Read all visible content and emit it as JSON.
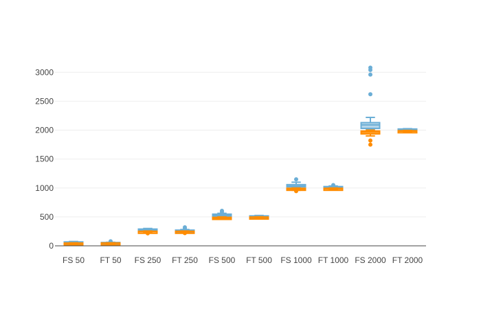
{
  "chart_data": {
    "type": "box",
    "title": "",
    "xlabel": "",
    "ylabel": "",
    "ylim": [
      0,
      3300
    ],
    "yticks": [
      0,
      500,
      1000,
      1500,
      2000,
      2500,
      3000
    ],
    "ytick_labels": [
      "0",
      "500",
      "1000",
      "1500",
      "2000",
      "2500",
      "3000"
    ],
    "grid": true,
    "legend": "none",
    "categories": [
      "FS 50",
      "FT 50",
      "FS 250",
      "FT 250",
      "FS 500",
      "FT 500",
      "FS 1000",
      "FT 1000",
      "FS 2000",
      "FT 2000"
    ],
    "series": [
      {
        "color": "#6baed6",
        "boxes": [
          {
            "category": "FS 50",
            "min": 45,
            "q1": 50,
            "median": 58,
            "q3": 68,
            "max": 75,
            "outliers": []
          },
          {
            "category": "FT 50",
            "min": 47,
            "q1": 50,
            "median": 52,
            "q3": 58,
            "max": 62,
            "outliers": [
              78
            ]
          },
          {
            "category": "FS 250",
            "min": 255,
            "q1": 262,
            "median": 270,
            "q3": 290,
            "max": 300,
            "outliers": []
          },
          {
            "category": "FT 250",
            "min": 245,
            "q1": 252,
            "median": 260,
            "q3": 272,
            "max": 282,
            "outliers": [
              300,
              320
            ]
          },
          {
            "category": "FS 500",
            "min": 505,
            "q1": 518,
            "median": 532,
            "q3": 548,
            "max": 562,
            "outliers": [
              585,
              605
            ]
          },
          {
            "category": "FT 500",
            "min": 495,
            "q1": 500,
            "median": 508,
            "q3": 518,
            "max": 525,
            "outliers": []
          },
          {
            "category": "FS 1000",
            "min": 1010,
            "q1": 1020,
            "median": 1032,
            "q3": 1058,
            "max": 1100,
            "outliers": [
              1150
            ]
          },
          {
            "category": "FT 1000",
            "min": 1005,
            "q1": 1008,
            "median": 1015,
            "q3": 1025,
            "max": 1035,
            "outliers": [
              1050
            ]
          },
          {
            "category": "FS 2000",
            "min": 2020,
            "q1": 2030,
            "median": 2090,
            "q3": 2130,
            "max": 2220,
            "outliers": [
              2620,
              2960,
              3040,
              3080
            ]
          },
          {
            "category": "FT 2000",
            "min": 1995,
            "q1": 2000,
            "median": 2005,
            "q3": 2020,
            "max": 2025,
            "outliers": []
          }
        ]
      },
      {
        "color": "#ff8c00",
        "boxes": [
          {
            "category": "FS 50",
            "min": 28,
            "q1": 36,
            "median": 42,
            "q3": 48,
            "max": 52,
            "outliers": []
          },
          {
            "category": "FT 50",
            "min": 38,
            "q1": 42,
            "median": 46,
            "q3": 50,
            "max": 52,
            "outliers": []
          },
          {
            "category": "FS 250",
            "min": 232,
            "q1": 240,
            "median": 246,
            "q3": 252,
            "max": 256,
            "outliers": [
              215
            ]
          },
          {
            "category": "FT 250",
            "min": 235,
            "q1": 240,
            "median": 246,
            "q3": 252,
            "max": 256,
            "outliers": [
              220
            ]
          },
          {
            "category": "FS 500",
            "min": 462,
            "q1": 468,
            "median": 478,
            "q3": 492,
            "max": 500,
            "outliers": []
          },
          {
            "category": "FT 500",
            "min": 480,
            "q1": 486,
            "median": 492,
            "q3": 498,
            "max": 502,
            "outliers": []
          },
          {
            "category": "FS 1000",
            "min": 960,
            "q1": 972,
            "median": 982,
            "q3": 995,
            "max": 1000,
            "outliers": [
              945
            ]
          },
          {
            "category": "FT 1000",
            "min": 975,
            "q1": 982,
            "median": 988,
            "q3": 995,
            "max": 1000,
            "outliers": []
          },
          {
            "category": "FS 2000",
            "min": 1900,
            "q1": 1935,
            "median": 1965,
            "q3": 1985,
            "max": 2000,
            "outliers": [
              1820,
              1750
            ]
          },
          {
            "category": "FT 2000",
            "min": 1970,
            "q1": 1975,
            "median": 1982,
            "q3": 1990,
            "max": 1995,
            "outliers": []
          }
        ]
      }
    ]
  }
}
